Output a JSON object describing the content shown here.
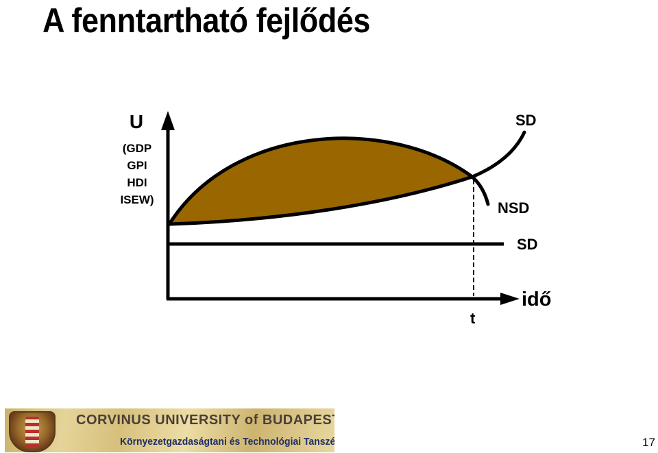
{
  "title": "A fenntartható fejlődés",
  "y_axis": {
    "symbol": "U",
    "indicators": [
      "(GDP",
      "GPI",
      "HDI",
      "ISEW)"
    ]
  },
  "x_axis": {
    "label": "idő",
    "marker": "t"
  },
  "curve_labels": {
    "sd_upper": "SD",
    "nsd": "NSD",
    "sd_flat": "SD"
  },
  "colors": {
    "area_fill": "#996600",
    "line": "#000000"
  },
  "footer": {
    "university": "CORVINUS UNIVERSITY of BUDAPEST",
    "department": "Környezetgazdaságtani és Technológiai Tanszék",
    "page_number": "17"
  }
}
